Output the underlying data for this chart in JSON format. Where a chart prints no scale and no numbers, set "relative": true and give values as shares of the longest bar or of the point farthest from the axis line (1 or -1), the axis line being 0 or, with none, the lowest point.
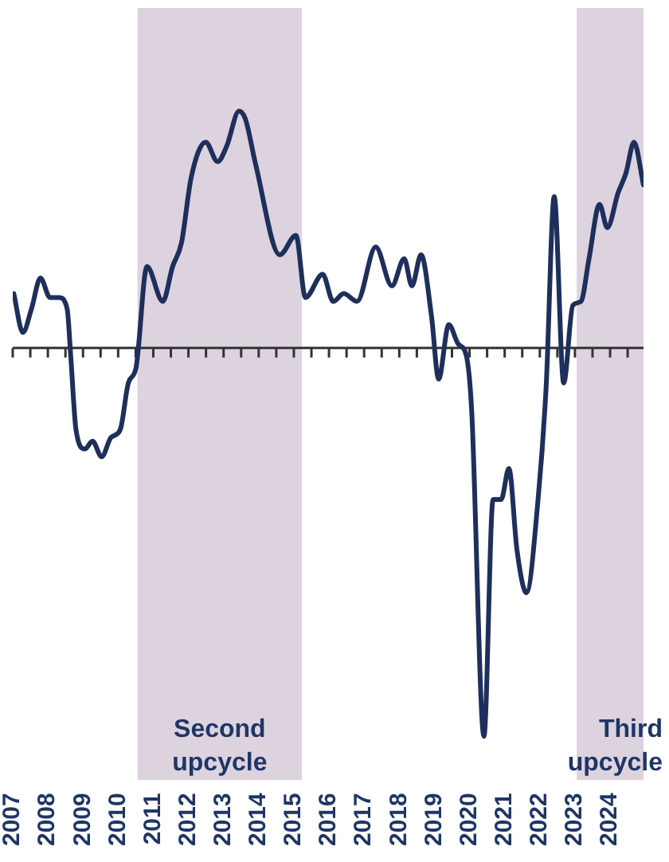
{
  "chart_data": {
    "type": "line",
    "relative": true,
    "x": [
      2007.03,
      2007.29,
      2007.53,
      2007.79,
      2008.06,
      2008.32,
      2008.55,
      2008.65,
      2008.8,
      2009.05,
      2009.27,
      2009.53,
      2009.8,
      2010.06,
      2010.29,
      2010.51,
      2010.82,
      2011.27,
      2011.55,
      2011.8,
      2012.08,
      2012.49,
      2012.83,
      2013.09,
      2013.44,
      2013.62,
      2013.92,
      2014.6,
      2015.06,
      2015.33,
      2015.82,
      2016.12,
      2016.42,
      2016.8,
      2017.33,
      2017.79,
      2018.14,
      2018.36,
      2018.62,
      2018.92,
      2019.12,
      2019.41,
      2019.68,
      2019.91,
      2020.06,
      2020.41,
      2020.67,
      2020.9,
      2021.12,
      2021.35,
      2021.62,
      2021.95,
      2022.18,
      2022.41,
      2022.68,
      2022.94,
      2023.17,
      2023.4,
      2023.7,
      2023.92,
      2024.23,
      2024.45,
      2024.68,
      2024.95
    ],
    "series": [
      {
        "color": "#1f2f5c",
        "values": [
          0.14,
          0.04,
          0.1,
          0.18,
          0.13,
          0.13,
          0.1,
          -0.02,
          -0.21,
          -0.26,
          -0.24,
          -0.28,
          -0.23,
          -0.21,
          -0.09,
          -0.05,
          0.21,
          0.12,
          0.21,
          0.27,
          0.44,
          0.53,
          0.48,
          0.52,
          0.61,
          0.59,
          0.47,
          0.24,
          0.29,
          0.13,
          0.19,
          0.12,
          0.14,
          0.12,
          0.26,
          0.16,
          0.23,
          0.16,
          0.24,
          0.08,
          -0.08,
          0.06,
          0.01,
          -0.02,
          -0.16,
          -1,
          -0.39,
          -0.39,
          -0.31,
          -0.52,
          -0.63,
          -0.39,
          -0.1,
          0.39,
          -0.09,
          0.11,
          0.12,
          0.23,
          0.37,
          0.31,
          0.4,
          0.45,
          0.53,
          0.42
        ]
      }
    ],
    "xlim": [
      2007,
      2024.95
    ],
    "xticks": [
      2007,
      {
        "value": 2007.5,
        "label": null
      },
      2008,
      {
        "value": 2008.5,
        "label": null
      },
      2009,
      {
        "value": 2009.5,
        "label": null
      },
      2010,
      {
        "value": 2010.5,
        "label": null
      },
      2011,
      {
        "value": 2011.5,
        "label": null
      },
      2012,
      {
        "value": 2012.5,
        "label": null
      },
      2013,
      {
        "value": 2013.5,
        "label": null
      },
      2014,
      {
        "value": 2014.5,
        "label": null
      },
      2015,
      {
        "value": 2015.5,
        "label": null
      },
      2016,
      {
        "value": 2016.5,
        "label": null
      },
      2017,
      {
        "value": 2017.5,
        "label": null
      },
      2018,
      {
        "value": 2018.5,
        "label": null
      },
      2019,
      {
        "value": 2019.5,
        "label": null
      },
      2020,
      {
        "value": 2020.5,
        "label": null
      },
      2021,
      {
        "value": 2021.5,
        "label": null
      },
      2022,
      {
        "value": 2022.5,
        "label": null
      },
      2023,
      {
        "value": 2023.5,
        "label": null
      },
      2024,
      {
        "value": 2024.5,
        "label": null
      }
    ],
    "bands": [
      {
        "axis": "x",
        "from": 2010.55,
        "to": 2015.23,
        "label": "Second upcycle",
        "color": "#dcd3df"
      },
      {
        "axis": "x",
        "from": 2023.05,
        "to": 2024.95,
        "label": "Third upcycle",
        "color": "#dcd3df"
      }
    ],
    "legend": false,
    "marker": "none",
    "line_style": "solid"
  }
}
